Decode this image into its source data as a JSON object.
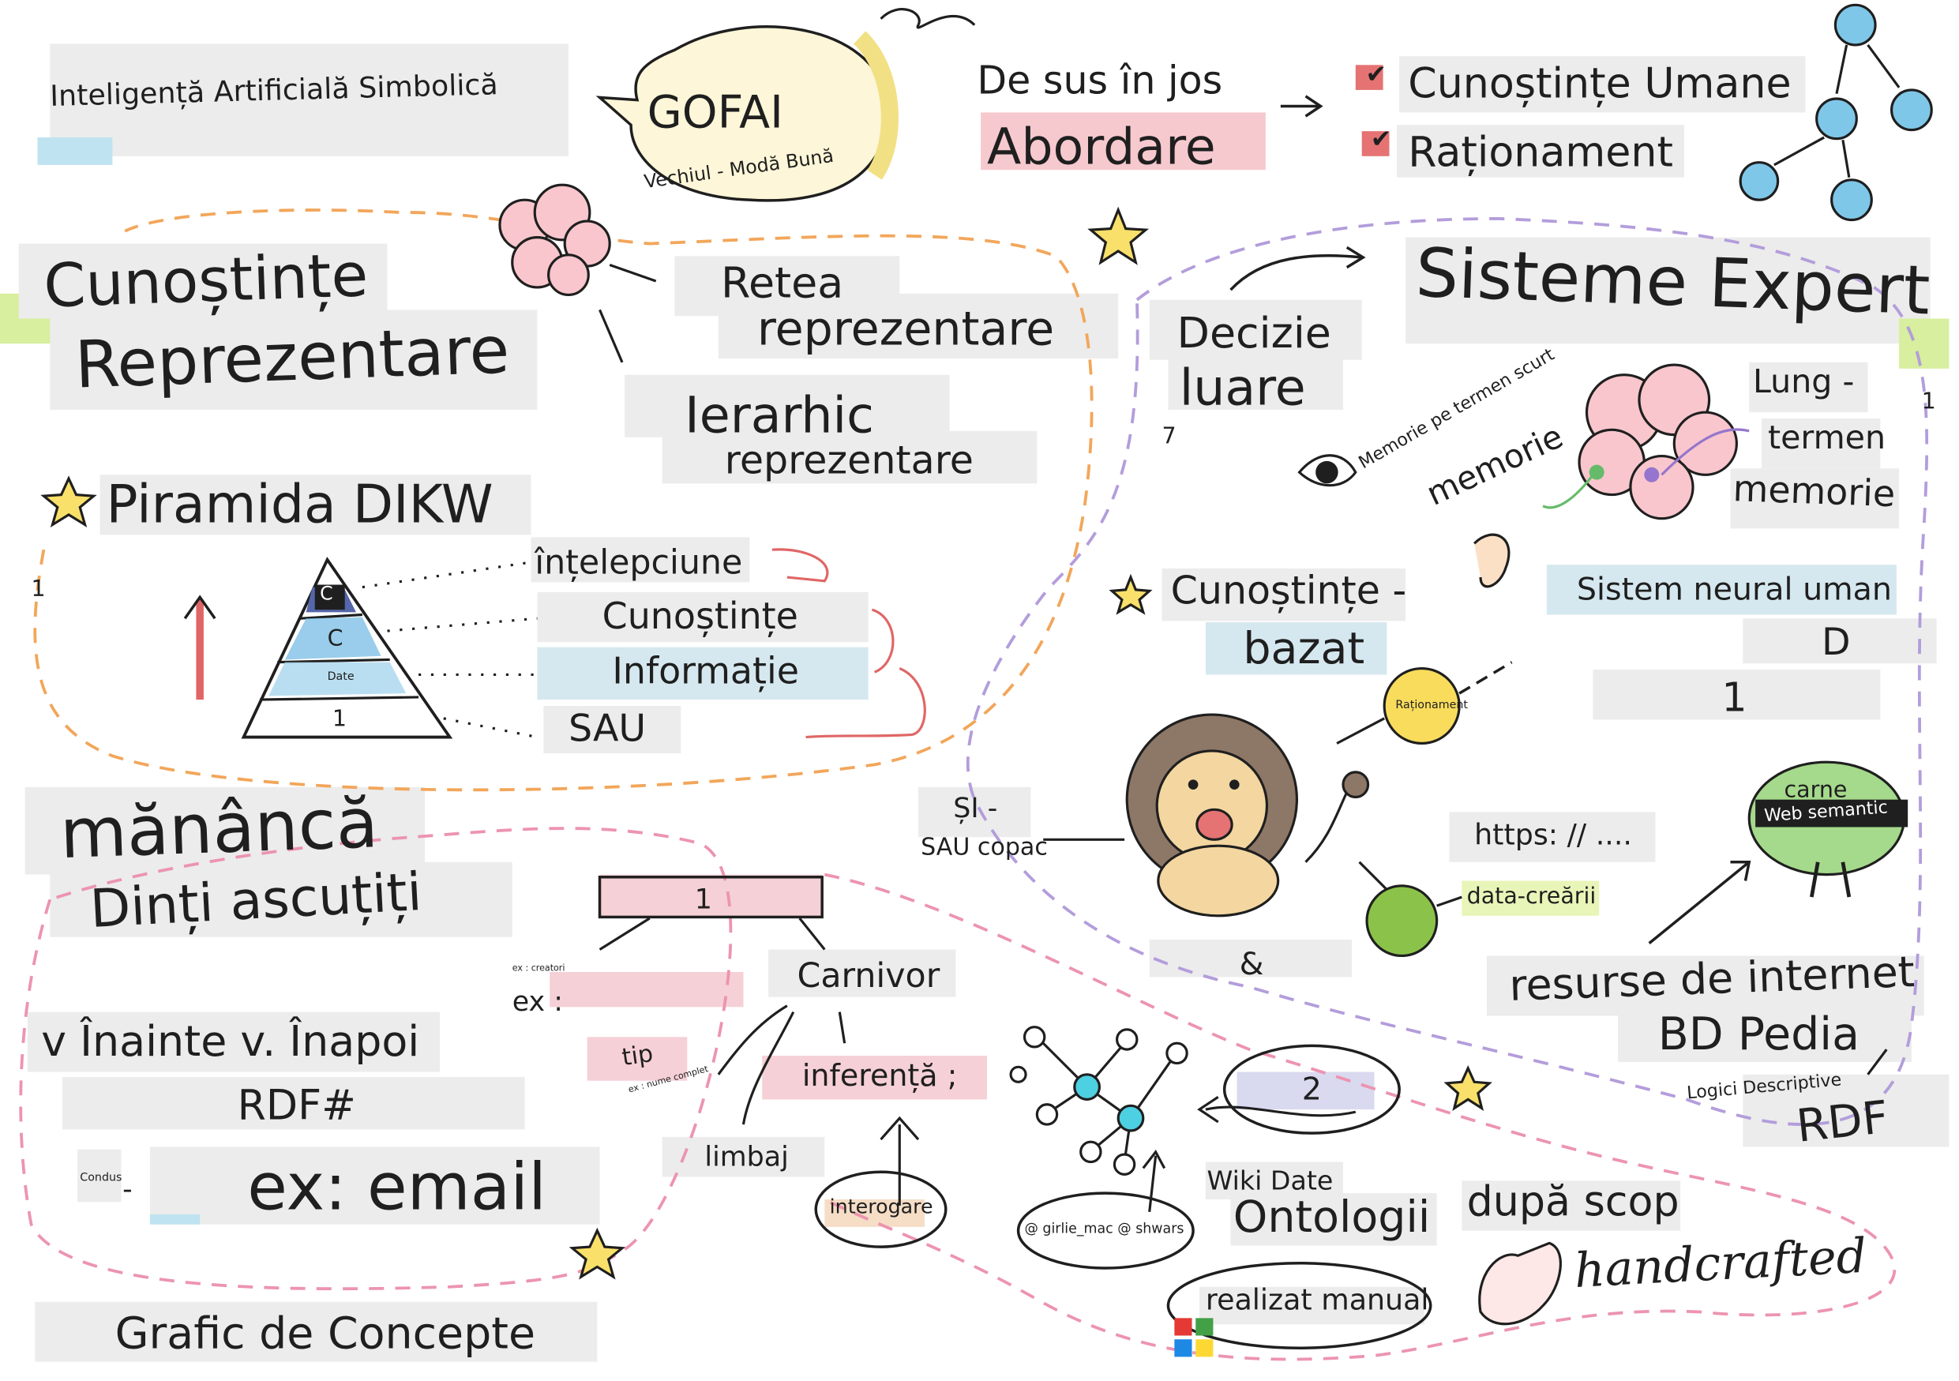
{
  "gofai": {
    "symbolic_ai": "Inteligență Artificială Simbolică",
    "gofai_label": "GOFAI",
    "old_fashioned": "Vechiul - Modă Bună",
    "top_down": "De sus în jos",
    "approach": "Abordare",
    "human_knowledge": "Cunoștințe Umane",
    "reasoning": "Raționament"
  },
  "knowledge_representation": {
    "title_line1": "Cunoștințe",
    "title_line2": "Reprezentare",
    "network_line1": "Retea",
    "network_line2": "reprezentare",
    "hierarchical_line1": "Ierarhic",
    "hierarchical_line2": "reprezentare",
    "dikw_title": "Piramida DIKW",
    "wisdom": "înțelepciune",
    "knowledge": "Cunoștințe",
    "information": "Informație",
    "or_label": "SAU",
    "pyramid_c_top": "C",
    "pyramid_c": "C",
    "pyramid_date": "Date",
    "pyramid_1": "1",
    "left_margin_1": "1"
  },
  "expert_systems": {
    "title": "Sisteme Expert",
    "decision_line1": "Decizie",
    "decision_line2": "luare",
    "short_term_label": "Memorie pe termen scurt",
    "short_term_memory": "memorie",
    "long_line1": "Lung -",
    "long_line2": "termen",
    "long_line3": "memorie",
    "human_neural": "Sistem neural uman",
    "kb_line1": "Cunoștințe -",
    "kb_line2": "bazat",
    "d_label": "D",
    "one_label": "1",
    "seven": "7",
    "right_margin_1": "1",
    "reasoning_tiny": "Raționament",
    "and_or_tree_line1": "ȘI -",
    "and_or_tree_line2": "SAU copac",
    "ampersand": "&",
    "data_creation": "data-creării",
    "https": "https: // ....",
    "meat": "carne",
    "semantic_web": "Web semantic",
    "internet_resources": "resurse de internet",
    "dbpedia": "BD Pedia",
    "description_logics": "Logici Descriptive",
    "rdf": "RDF"
  },
  "inference": {
    "eats": "mănâncă",
    "sharp_teeth": "Dinți ascuțiți",
    "box_one": "1",
    "carnivore": "Carnivor",
    "ex": "ex :",
    "ex_tiny": "ex : creatori",
    "type": "tip",
    "type_sub": "ex : nume complet",
    "inference": "inferență ;",
    "language": "limbaj",
    "query": "interogare",
    "forward_backward": "v Înainte v. Înapoi",
    "rdf_hash": "RDF#",
    "ex_email": "ex: email",
    "conditions": "Condus",
    "dash": "-",
    "concept_graph": "Grafic de Concepte"
  },
  "ontology": {
    "two": "2",
    "wikidata": "Wiki Date",
    "ontologies": "Ontologii",
    "credits": "@ girlie_mac @ shwars",
    "by_purpose": "după scop",
    "handcrafted_script": "handcrafted",
    "manual": "realizat manual"
  }
}
